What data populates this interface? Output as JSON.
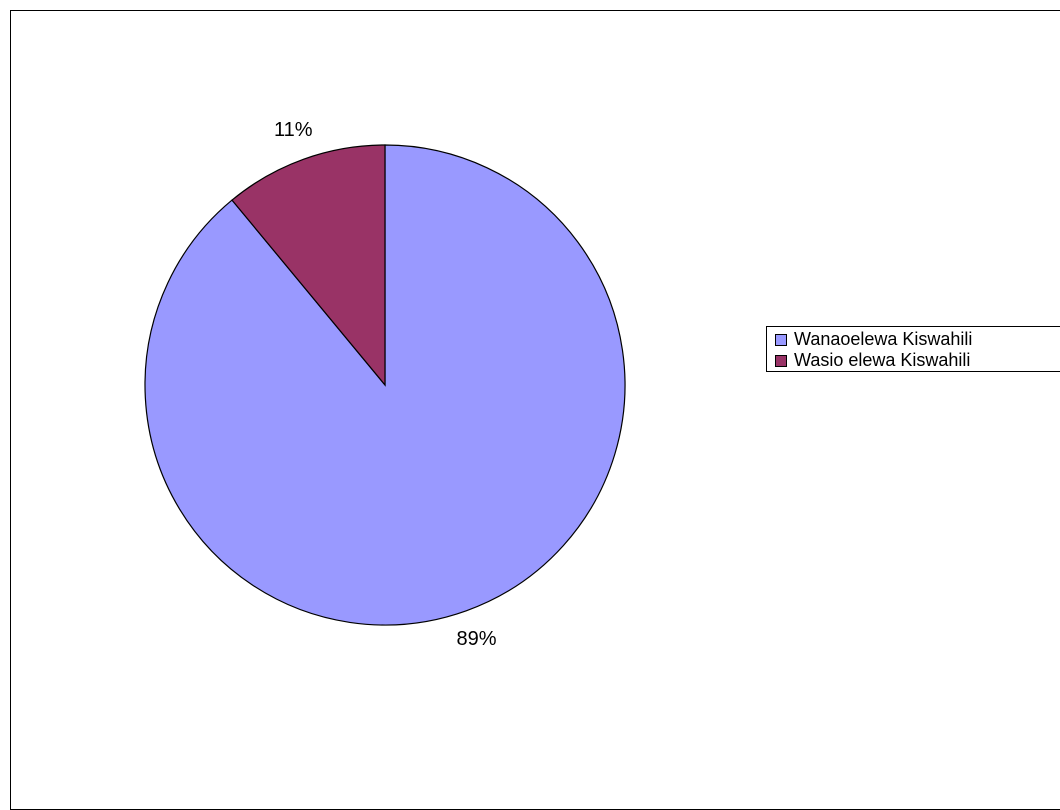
{
  "chart_data": {
    "type": "pie",
    "categories": [
      "Wanaoelewa Kiswahili",
      "Wasio elewa Kiswahili"
    ],
    "values": [
      89,
      11
    ],
    "data_labels": [
      "89%",
      "11%"
    ],
    "colors": [
      "#9999FF",
      "#993366"
    ],
    "start_angle_deg": 0,
    "direction": "clockwise",
    "legend_position": "right"
  }
}
